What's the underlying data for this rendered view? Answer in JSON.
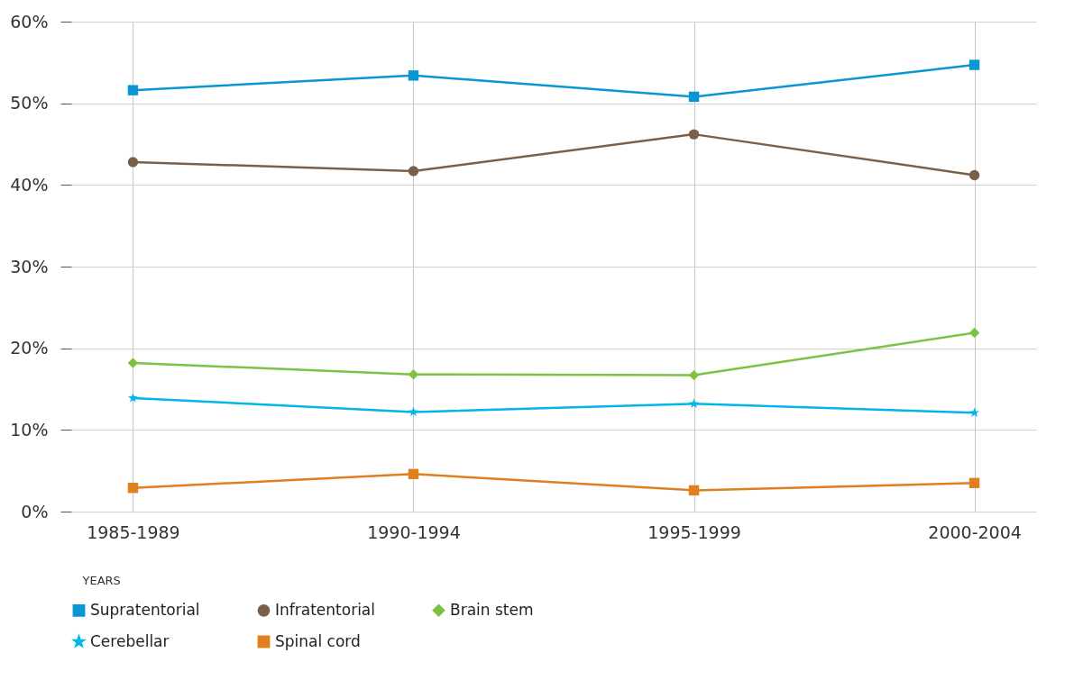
{
  "chart_data": {
    "type": "line",
    "xlabel": "YEARS",
    "categories": [
      "1985-1989",
      "1990-1994",
      "1995-1999",
      "2000-2004"
    ],
    "series": [
      {
        "name": "Supratentorial",
        "color": "#0a95d3",
        "marker": "square",
        "values": [
          51.6,
          53.4,
          50.8,
          54.7
        ]
      },
      {
        "name": "Infratentorial",
        "color": "#7b6049",
        "marker": "circle",
        "values": [
          42.8,
          41.7,
          46.2,
          41.2
        ]
      },
      {
        "name": "Brain stem",
        "color": "#7dc242",
        "marker": "diamond",
        "values": [
          18.2,
          16.8,
          16.7,
          21.9
        ]
      },
      {
        "name": "Cerebellar",
        "color": "#00b6e6",
        "marker": "star",
        "values": [
          13.9,
          12.2,
          13.2,
          12.1
        ]
      },
      {
        "name": "Spinal cord",
        "color": "#e07f20",
        "marker": "square",
        "values": [
          2.9,
          4.6,
          2.6,
          3.5
        ]
      }
    ],
    "ylim": [
      0,
      60
    ],
    "yticks": [
      {
        "value": 0,
        "label": "0%"
      },
      {
        "value": 10,
        "label": "10%"
      },
      {
        "value": 20,
        "label": "20%"
      },
      {
        "value": 30,
        "label": "30%"
      },
      {
        "value": 40,
        "label": "40%"
      },
      {
        "value": 50,
        "label": "50%"
      },
      {
        "value": 60,
        "label": "60%"
      }
    ],
    "grid": true,
    "legend": "bottom",
    "line_style": "solid"
  }
}
